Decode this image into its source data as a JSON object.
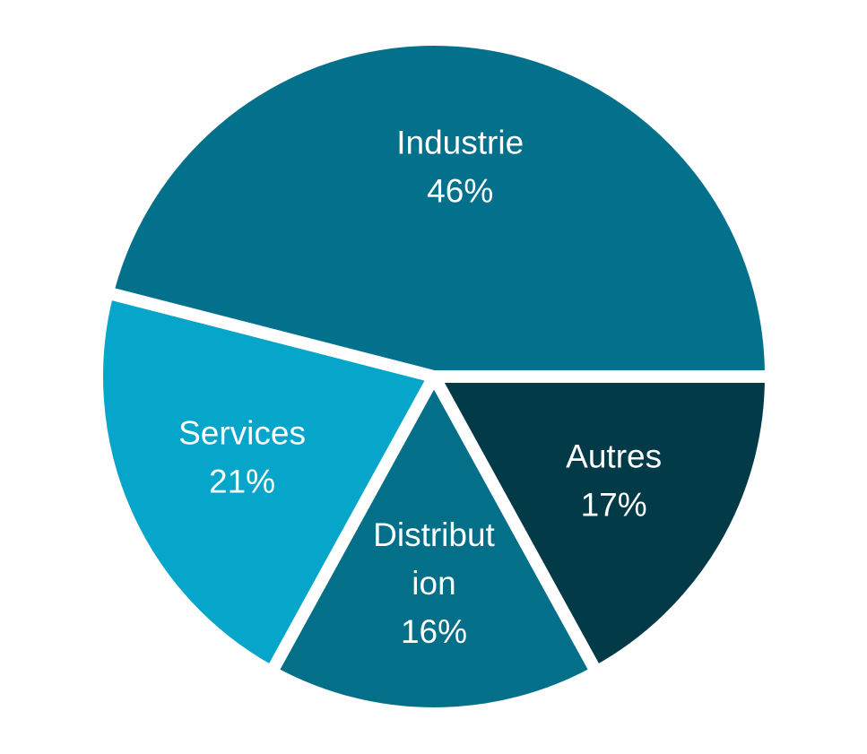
{
  "chart_data": {
    "type": "pie",
    "title": "",
    "legend": "none",
    "slices": [
      {
        "category": "Autres",
        "value": 17,
        "label_lines": [
          "Autres"
        ],
        "percent_label": "17%",
        "color": "#023a48"
      },
      {
        "category": "Distribution",
        "value": 16,
        "label_lines": [
          "Distribut",
          "ion"
        ],
        "percent_label": "16%",
        "color": "#036f88"
      },
      {
        "category": "Services",
        "value": 21,
        "label_lines": [
          "Services"
        ],
        "percent_label": "21%",
        "color": "#05a6ca"
      },
      {
        "category": "Industrie",
        "value": 46,
        "label_lines": [
          "Industrie"
        ],
        "percent_label": "46%",
        "color": "#03718b"
      }
    ]
  }
}
